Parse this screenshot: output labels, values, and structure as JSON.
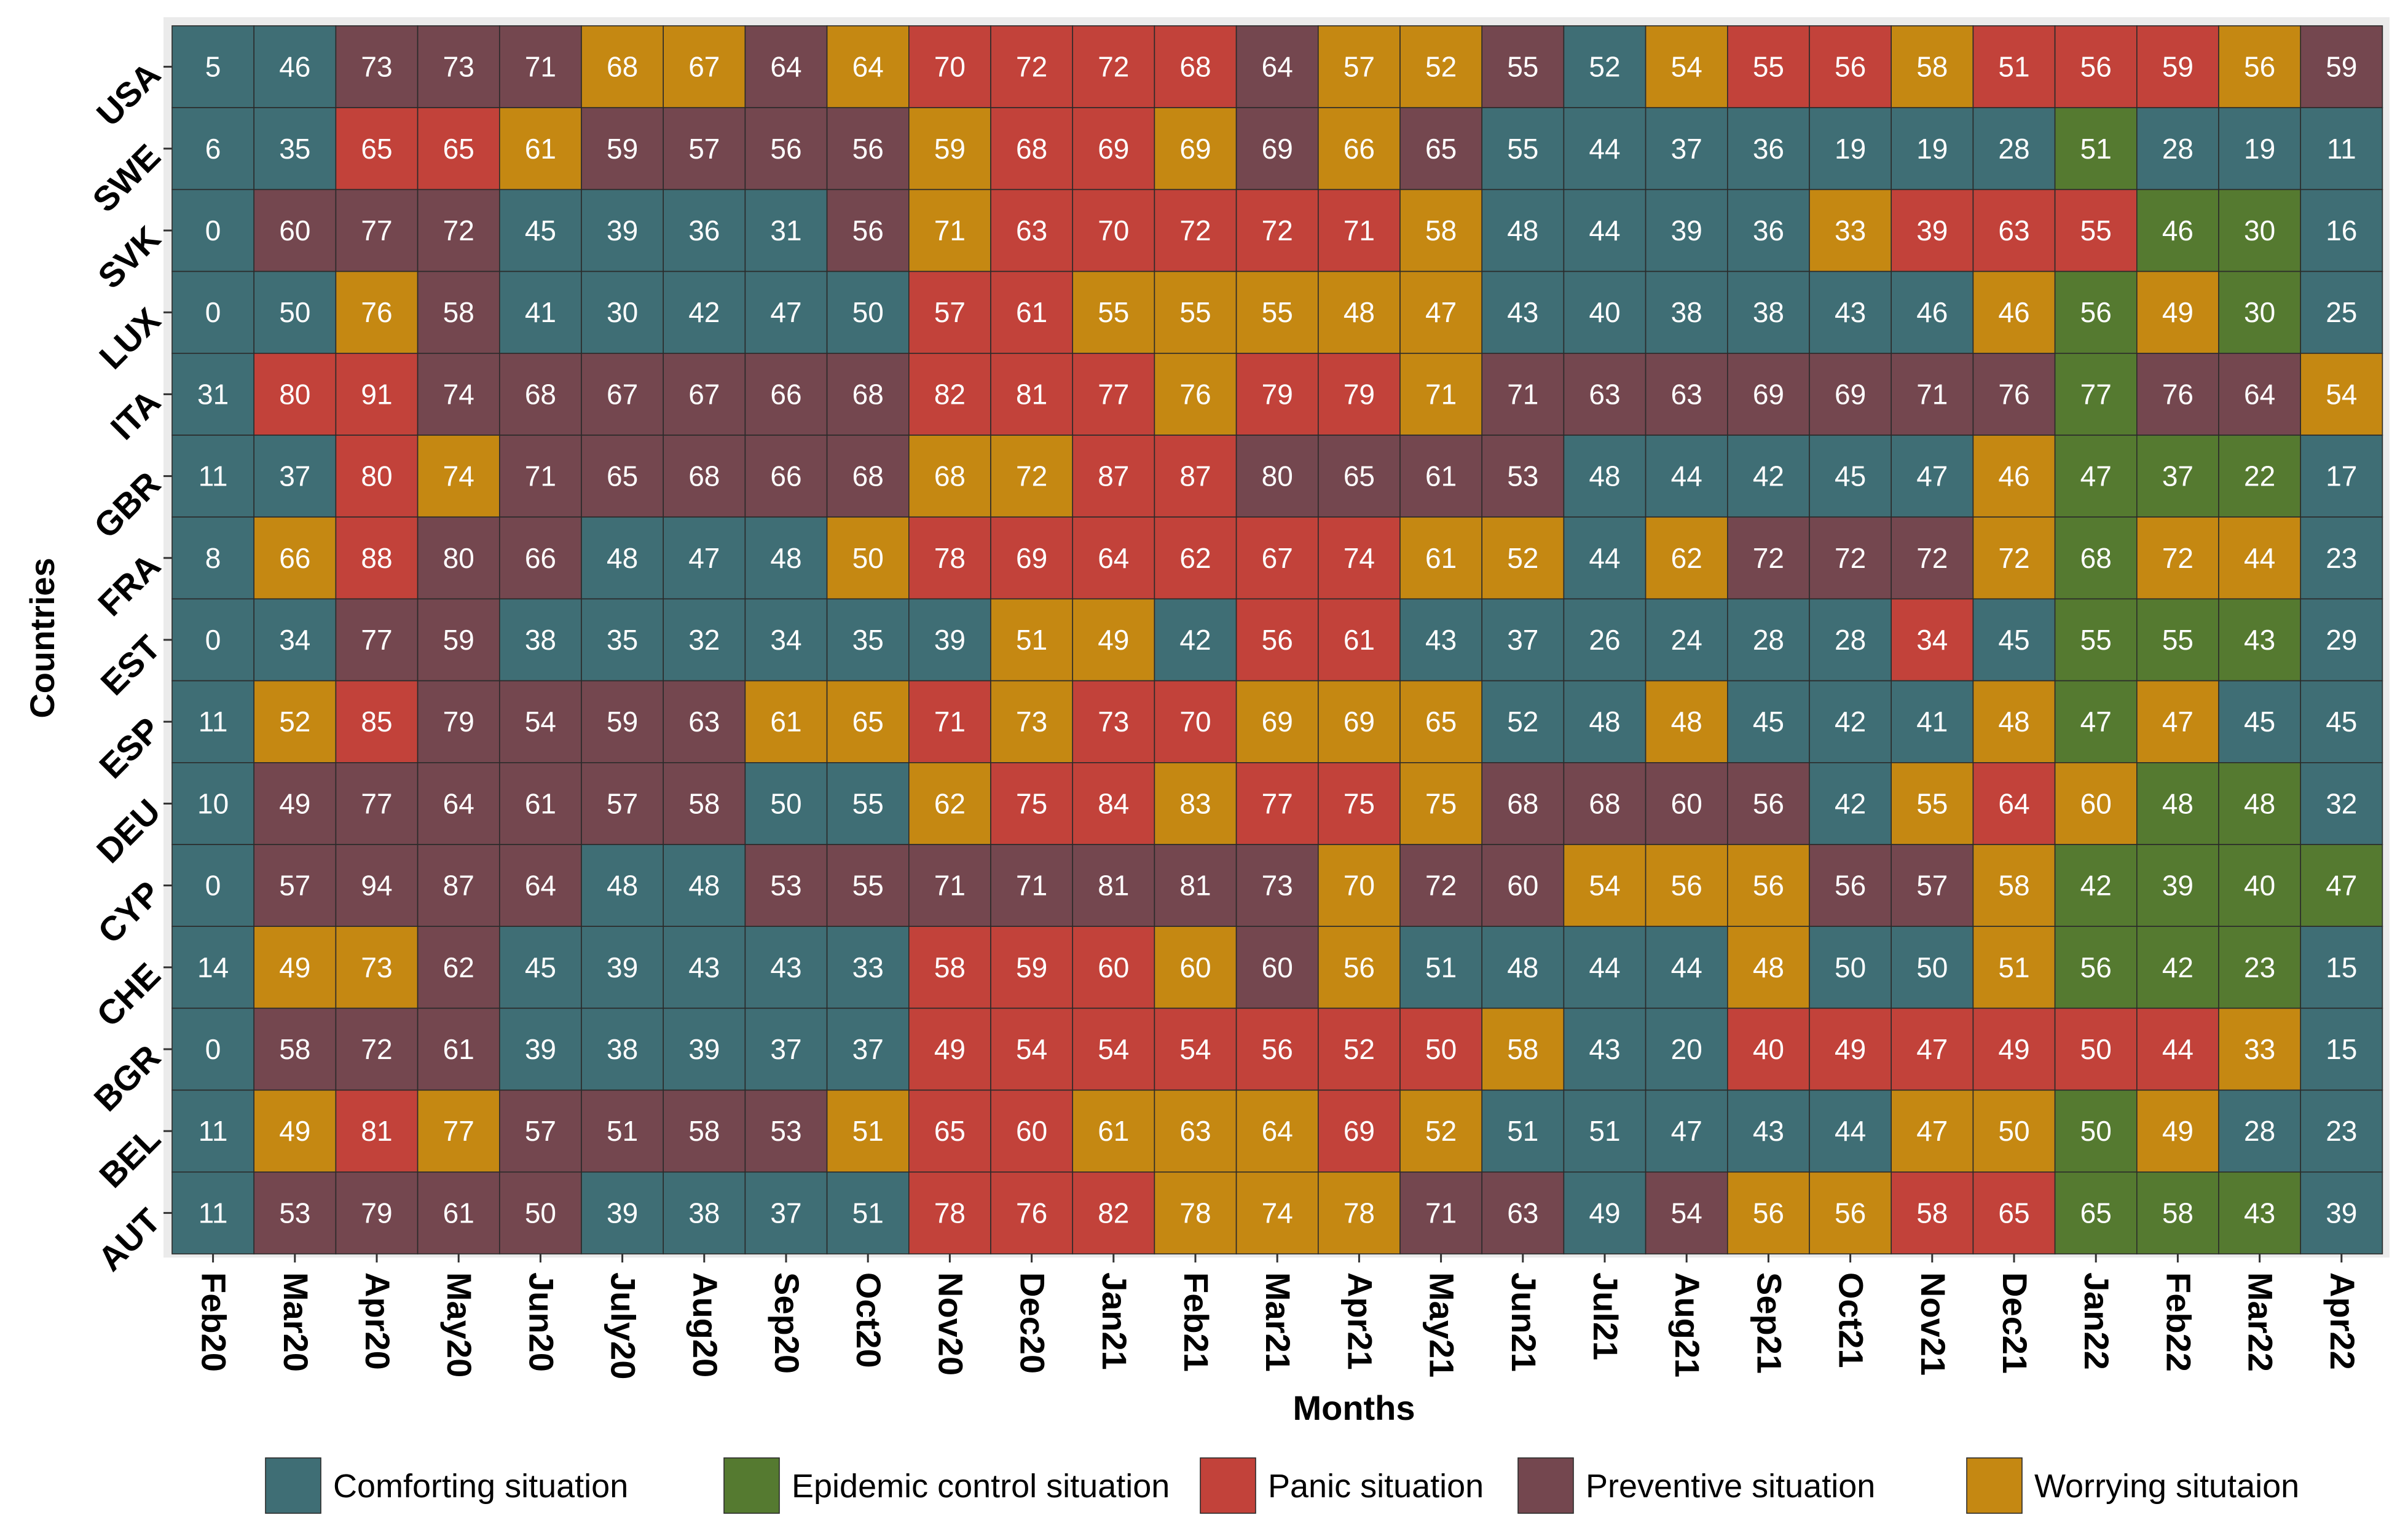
{
  "chart_data": {
    "type": "heatmap",
    "xlabel": "Months",
    "ylabel": "Countries",
    "x_categories": [
      "Feb20",
      "Mar20",
      "Apr20",
      "May20",
      "Jun20",
      "July20",
      "Aug20",
      "Sep20",
      "Oct20",
      "Nov20",
      "Dec20",
      "Jan21",
      "Feb21",
      "Mar21",
      "Apr21",
      "May21",
      "Jun21",
      "Jul21",
      "Aug21",
      "Sep21",
      "Oct21",
      "Nov21",
      "Dec21",
      "Jan22",
      "Feb22",
      "Mar22",
      "Apr22"
    ],
    "y_categories": [
      "USA",
      "SWE",
      "SVK",
      "LUX",
      "ITA",
      "GBR",
      "FRA",
      "EST",
      "ESP",
      "DEU",
      "CYP",
      "CHE",
      "BGR",
      "BEL",
      "AUT"
    ],
    "legend": [
      {
        "key": "C",
        "label": "Comforting situation",
        "color": "#3f6e75"
      },
      {
        "key": "E",
        "label": "Epidemic control situation",
        "color": "#557a30"
      },
      {
        "key": "P",
        "label": "Panic situation",
        "color": "#c2423a"
      },
      {
        "key": "V",
        "label": "Preventive situation",
        "color": "#74474f"
      },
      {
        "key": "W",
        "label": "Worrying situtaion",
        "color": "#c58812"
      }
    ],
    "legend_position": "bottom",
    "values": [
      [
        5,
        46,
        73,
        73,
        71,
        68,
        67,
        64,
        64,
        70,
        72,
        72,
        68,
        64,
        57,
        52,
        55,
        52,
        54,
        55,
        56,
        58,
        51,
        56,
        59,
        56,
        59
      ],
      [
        6,
        35,
        65,
        65,
        61,
        59,
        57,
        56,
        56,
        59,
        68,
        69,
        69,
        69,
        66,
        65,
        55,
        44,
        37,
        36,
        19,
        19,
        28,
        51,
        28,
        19,
        11
      ],
      [
        0,
        60,
        77,
        72,
        45,
        39,
        36,
        31,
        56,
        71,
        63,
        70,
        72,
        72,
        71,
        58,
        48,
        44,
        39,
        36,
        33,
        39,
        63,
        55,
        46,
        30,
        16
      ],
      [
        0,
        50,
        76,
        58,
        41,
        30,
        42,
        47,
        50,
        57,
        61,
        55,
        55,
        55,
        48,
        47,
        43,
        40,
        38,
        38,
        43,
        46,
        46,
        56,
        49,
        30,
        25
      ],
      [
        31,
        80,
        91,
        74,
        68,
        67,
        67,
        66,
        68,
        82,
        81,
        77,
        76,
        79,
        79,
        71,
        71,
        63,
        63,
        69,
        69,
        71,
        76,
        77,
        76,
        64,
        54
      ],
      [
        11,
        37,
        80,
        74,
        71,
        65,
        68,
        66,
        68,
        68,
        72,
        87,
        87,
        80,
        65,
        61,
        53,
        48,
        44,
        42,
        45,
        47,
        46,
        47,
        37,
        22,
        17
      ],
      [
        8,
        66,
        88,
        80,
        66,
        48,
        47,
        48,
        50,
        78,
        69,
        64,
        62,
        67,
        74,
        61,
        52,
        44,
        62,
        72,
        72,
        72,
        72,
        68,
        72,
        44,
        23
      ],
      [
        0,
        34,
        77,
        59,
        38,
        35,
        32,
        34,
        35,
        39,
        51,
        49,
        42,
        56,
        61,
        43,
        37,
        26,
        24,
        28,
        28,
        34,
        45,
        55,
        55,
        43,
        29
      ],
      [
        11,
        52,
        85,
        79,
        54,
        59,
        63,
        61,
        65,
        71,
        73,
        73,
        70,
        69,
        69,
        65,
        52,
        48,
        48,
        45,
        42,
        41,
        48,
        47,
        47,
        45,
        45
      ],
      [
        10,
        49,
        77,
        64,
        61,
        57,
        58,
        50,
        55,
        62,
        75,
        84,
        83,
        77,
        75,
        75,
        68,
        68,
        60,
        56,
        42,
        55,
        64,
        60,
        48,
        48,
        32
      ],
      [
        0,
        57,
        94,
        87,
        64,
        48,
        48,
        53,
        55,
        71,
        71,
        81,
        81,
        73,
        70,
        72,
        60,
        54,
        56,
        56,
        56,
        57,
        58,
        42,
        39,
        40,
        47
      ],
      [
        14,
        49,
        73,
        62,
        45,
        39,
        43,
        43,
        33,
        58,
        59,
        60,
        60,
        60,
        56,
        51,
        48,
        44,
        44,
        48,
        50,
        50,
        51,
        56,
        42,
        23,
        15
      ],
      [
        0,
        58,
        72,
        61,
        39,
        38,
        39,
        37,
        37,
        49,
        54,
        54,
        54,
        56,
        52,
        50,
        58,
        43,
        20,
        40,
        49,
        47,
        49,
        50,
        44,
        33,
        15
      ],
      [
        11,
        49,
        81,
        77,
        57,
        51,
        58,
        53,
        51,
        65,
        60,
        61,
        63,
        64,
        69,
        52,
        51,
        51,
        47,
        43,
        44,
        47,
        50,
        50,
        49,
        28,
        23
      ],
      [
        11,
        53,
        79,
        61,
        50,
        39,
        38,
        37,
        51,
        78,
        76,
        82,
        78,
        74,
        78,
        71,
        63,
        49,
        54,
        56,
        56,
        58,
        65,
        65,
        58,
        43,
        39
      ]
    ],
    "situations": [
      [
        "C",
        "C",
        "V",
        "V",
        "V",
        "W",
        "W",
        "V",
        "W",
        "P",
        "P",
        "P",
        "P",
        "V",
        "W",
        "W",
        "V",
        "C",
        "W",
        "P",
        "P",
        "W",
        "P",
        "P",
        "P",
        "W",
        "V"
      ],
      [
        "C",
        "C",
        "P",
        "P",
        "W",
        "V",
        "V",
        "V",
        "V",
        "W",
        "P",
        "P",
        "W",
        "V",
        "W",
        "V",
        "C",
        "C",
        "C",
        "C",
        "C",
        "C",
        "C",
        "E",
        "C",
        "C",
        "C"
      ],
      [
        "C",
        "V",
        "V",
        "V",
        "C",
        "C",
        "C",
        "C",
        "V",
        "W",
        "P",
        "P",
        "P",
        "P",
        "P",
        "W",
        "C",
        "C",
        "C",
        "C",
        "W",
        "P",
        "P",
        "P",
        "E",
        "E",
        "C"
      ],
      [
        "C",
        "C",
        "W",
        "V",
        "C",
        "C",
        "C",
        "C",
        "C",
        "P",
        "P",
        "W",
        "W",
        "W",
        "W",
        "W",
        "C",
        "C",
        "C",
        "C",
        "C",
        "C",
        "W",
        "E",
        "W",
        "E",
        "C"
      ],
      [
        "C",
        "P",
        "P",
        "V",
        "V",
        "V",
        "V",
        "V",
        "V",
        "P",
        "P",
        "P",
        "W",
        "P",
        "P",
        "W",
        "V",
        "V",
        "V",
        "V",
        "V",
        "V",
        "V",
        "E",
        "V",
        "V",
        "W"
      ],
      [
        "C",
        "C",
        "P",
        "W",
        "V",
        "V",
        "V",
        "V",
        "V",
        "W",
        "W",
        "P",
        "P",
        "V",
        "V",
        "V",
        "V",
        "C",
        "C",
        "C",
        "C",
        "C",
        "W",
        "E",
        "E",
        "E",
        "C"
      ],
      [
        "C",
        "W",
        "P",
        "V",
        "V",
        "C",
        "C",
        "C",
        "W",
        "P",
        "P",
        "P",
        "P",
        "P",
        "P",
        "W",
        "W",
        "C",
        "W",
        "V",
        "V",
        "V",
        "W",
        "E",
        "W",
        "W",
        "C"
      ],
      [
        "C",
        "C",
        "V",
        "V",
        "C",
        "C",
        "C",
        "C",
        "C",
        "C",
        "W",
        "W",
        "C",
        "P",
        "P",
        "C",
        "C",
        "C",
        "C",
        "C",
        "C",
        "P",
        "C",
        "E",
        "E",
        "E",
        "C"
      ],
      [
        "C",
        "W",
        "P",
        "V",
        "V",
        "V",
        "V",
        "W",
        "W",
        "P",
        "W",
        "P",
        "P",
        "W",
        "W",
        "W",
        "C",
        "C",
        "W",
        "C",
        "C",
        "C",
        "W",
        "E",
        "W",
        "C",
        "C"
      ],
      [
        "C",
        "V",
        "V",
        "V",
        "V",
        "V",
        "V",
        "C",
        "C",
        "W",
        "P",
        "P",
        "W",
        "P",
        "P",
        "W",
        "V",
        "V",
        "V",
        "V",
        "C",
        "W",
        "P",
        "W",
        "E",
        "E",
        "C"
      ],
      [
        "C",
        "V",
        "V",
        "V",
        "V",
        "C",
        "C",
        "V",
        "V",
        "V",
        "V",
        "V",
        "V",
        "V",
        "W",
        "V",
        "V",
        "W",
        "W",
        "W",
        "V",
        "V",
        "W",
        "E",
        "E",
        "E",
        "E"
      ],
      [
        "C",
        "W",
        "W",
        "V",
        "C",
        "C",
        "C",
        "C",
        "C",
        "P",
        "P",
        "P",
        "W",
        "V",
        "W",
        "C",
        "C",
        "C",
        "C",
        "W",
        "C",
        "C",
        "W",
        "E",
        "E",
        "E",
        "C"
      ],
      [
        "C",
        "V",
        "V",
        "V",
        "C",
        "C",
        "C",
        "C",
        "C",
        "P",
        "P",
        "P",
        "P",
        "P",
        "P",
        "P",
        "W",
        "C",
        "C",
        "P",
        "P",
        "P",
        "P",
        "P",
        "P",
        "W",
        "C"
      ],
      [
        "C",
        "W",
        "P",
        "W",
        "V",
        "V",
        "V",
        "V",
        "W",
        "P",
        "P",
        "W",
        "W",
        "W",
        "P",
        "W",
        "C",
        "C",
        "C",
        "C",
        "C",
        "W",
        "W",
        "E",
        "W",
        "C",
        "C"
      ],
      [
        "C",
        "V",
        "V",
        "V",
        "V",
        "C",
        "C",
        "C",
        "C",
        "P",
        "P",
        "P",
        "W",
        "W",
        "W",
        "V",
        "V",
        "C",
        "V",
        "W",
        "W",
        "P",
        "P",
        "E",
        "E",
        "E",
        "C"
      ]
    ]
  }
}
